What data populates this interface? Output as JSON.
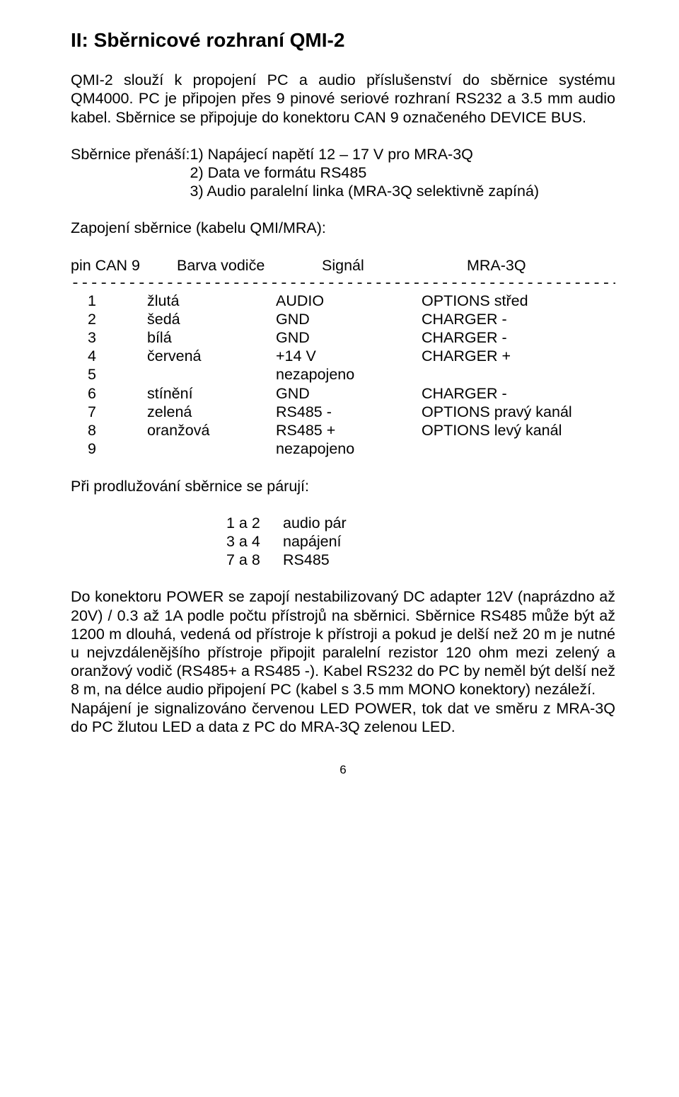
{
  "title": "II:  Sběrnicové rozhraní QMI-2",
  "intro": "QMI-2 slouží k propojení PC a audio příslušenství do sběrnice systému QM4000. PC je připojen přes 9 pinové seriové rozhraní RS232 a 3.5 mm audio kabel. Sběrnice se připojuje do konektoru CAN 9 označeného DEVICE BUS.",
  "bus": {
    "label": "Sběrnice přenáší:  ",
    "items": [
      "1) Napájecí napětí 12 – 17 V pro MRA-3Q",
      "2) Data ve formátu RS485",
      "3) Audio paralelní linka (MRA-3Q selektivně zapíná)"
    ]
  },
  "wiring_head": "Zapojení sběrnice  (kabelu QMI/MRA):",
  "header": {
    "pin": "pin CAN 9",
    "color": "Barva vodiče",
    "signal": "Signál",
    "mra": "MRA-3Q"
  },
  "divider": "-------------------------------------------------------------------------------------------------",
  "rows": [
    {
      "pin": "1",
      "color": "žlutá",
      "sig": "AUDIO",
      "mra": "OPTIONS  střed"
    },
    {
      "pin": "2",
      "color": "šedá",
      "sig": "GND",
      "mra": "CHARGER  -"
    },
    {
      "pin": "3",
      "color": "bílá",
      "sig": "GND",
      "mra": "CHARGER  -"
    },
    {
      "pin": "4",
      "color": "červená",
      "sig": "+14 V",
      "mra": "CHARGER  +"
    },
    {
      "pin": "5",
      "color": "",
      "sig": "nezapojeno",
      "mra": "",
      "wide": true
    },
    {
      "pin": "6",
      "color": "stínění",
      "sig": "GND",
      "mra": "CHARGER  -"
    },
    {
      "pin": "7",
      "color": "zelená",
      "sig": "RS485  -",
      "mra": "OPTIONS  pravý kanál"
    },
    {
      "pin": "8",
      "color": "oranžová",
      "sig": "RS485  +",
      "mra": "OPTIONS  levý kanál"
    },
    {
      "pin": "9",
      "color": "",
      "sig": "nezapojeno",
      "mra": "",
      "wide": true
    }
  ],
  "pair_head": "Při prodlužování sběrnice se párují:",
  "pairs": [
    {
      "a": "1 a 2",
      "b": "audio pár"
    },
    {
      "a": "3 a 4",
      "b": "napájení"
    },
    {
      "a": "7 a 8",
      "b": "RS485"
    }
  ],
  "power": "Do konektoru POWER se zapojí nestabilizovaný DC adapter 12V (naprázdno až 20V) / 0.3 až 1A podle počtu přístrojů na sběrnici. Sběrnice RS485 může být až 1200 m dlouhá, vedená od přístroje k přístroji a pokud je delší než 20 m je nutné u nejvzdálenějšího přístroje připojit paralelní rezistor 120 ohm mezi zelený a oranžový vodič (RS485+ a RS485 -). Kabel RS232 do PC by neměl být delší než 8 m, na délce audio připojení PC (kabel s 3.5 mm MONO konektory) nezáleží.",
  "led": "Napájení je signalizováno červenou LED POWER, tok dat ve směru z MRA-3Q do PC žlutou LED a data z PC do MRA-3Q zelenou LED.",
  "page": "6"
}
